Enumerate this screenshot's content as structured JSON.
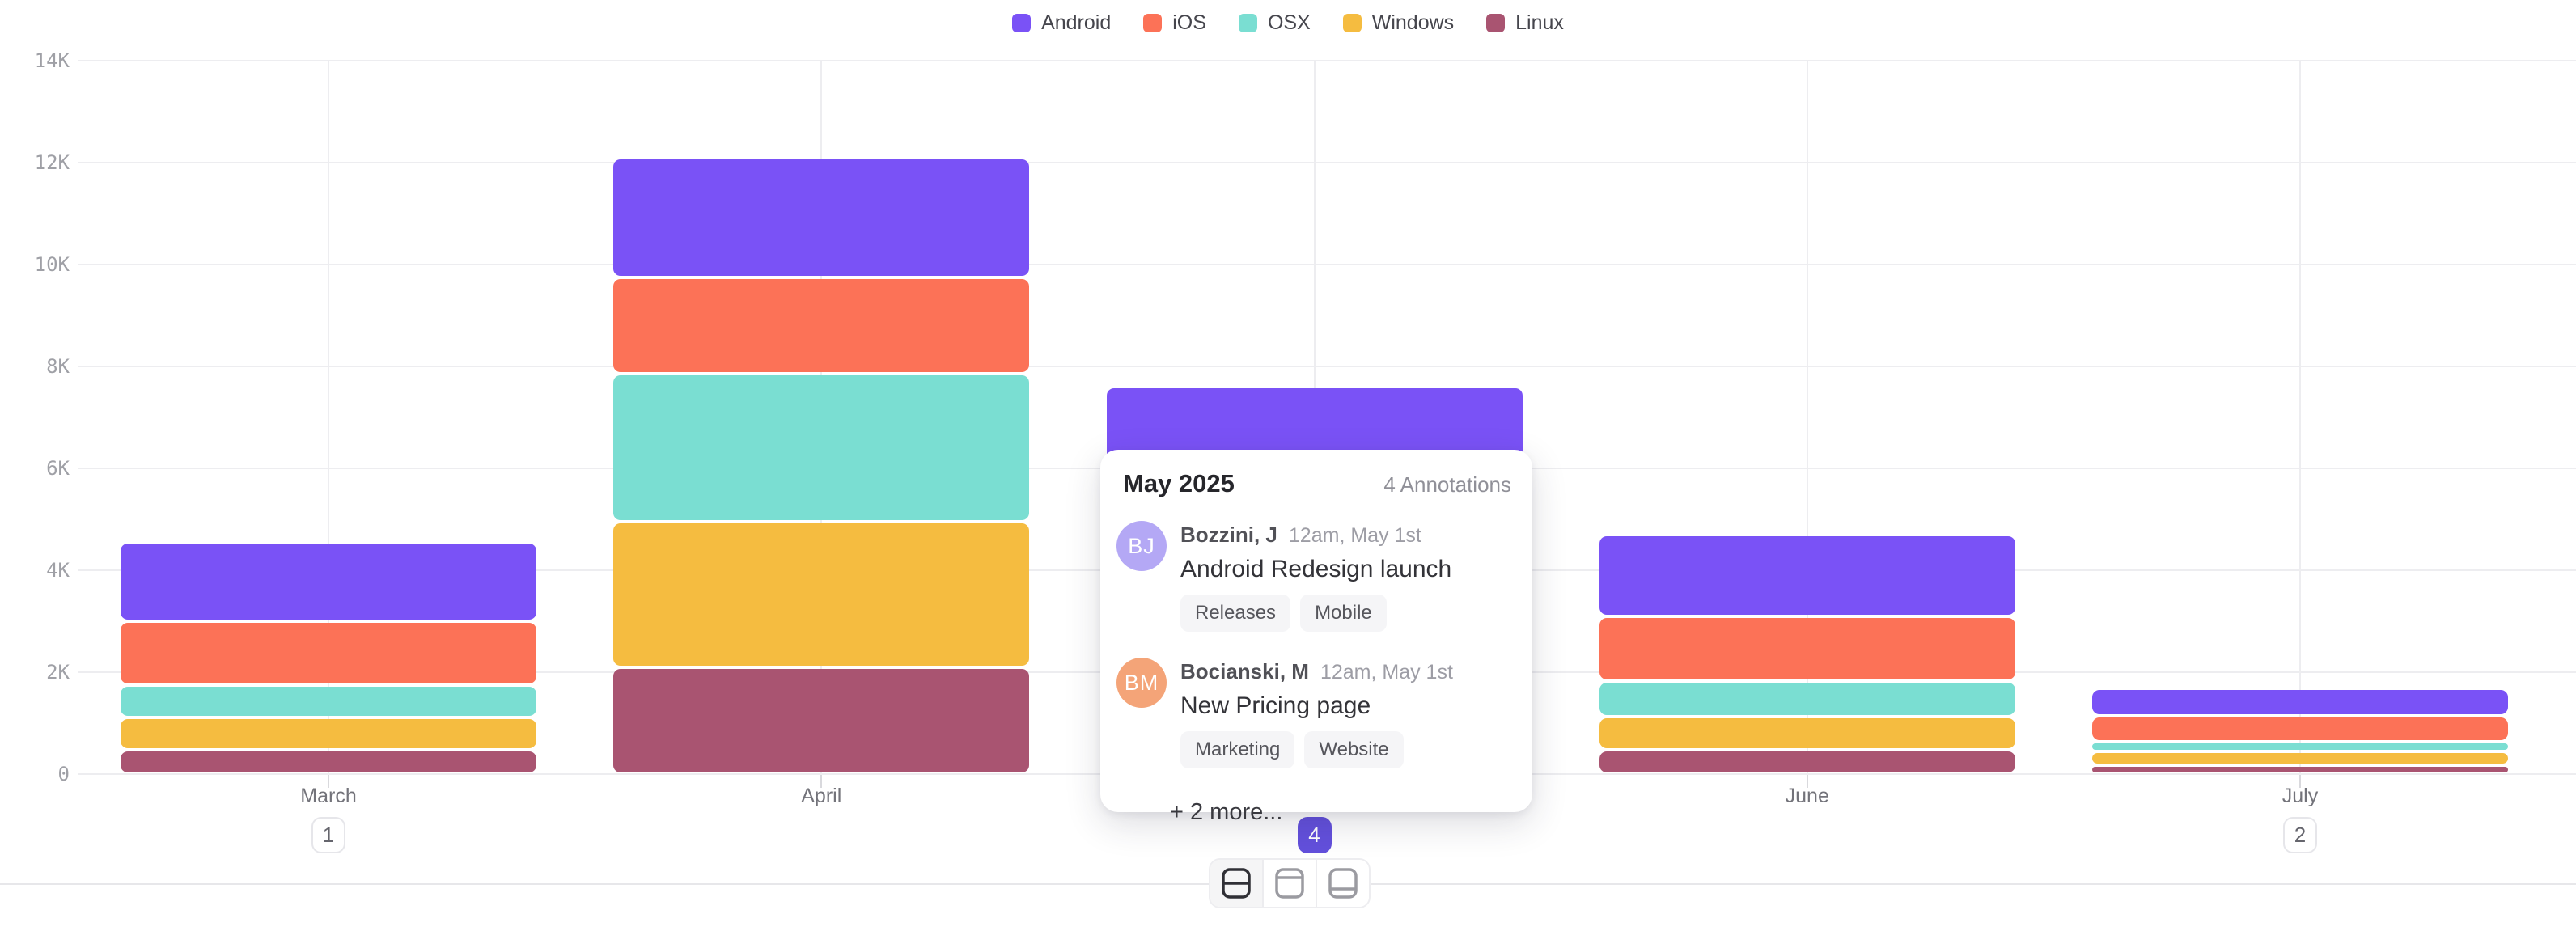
{
  "chart_data": {
    "type": "bar",
    "variant": "stacked",
    "title": "",
    "xlabel": "",
    "ylabel": "",
    "unit": "K",
    "categories": [
      "March",
      "April",
      "May",
      "June",
      "July"
    ],
    "series": [
      {
        "name": "Android",
        "color": "#7a52f6",
        "values": [
          1.56,
          2.35,
          2.1,
          1.6,
          0.54
        ]
      },
      {
        "name": "iOS",
        "color": "#fc7257",
        "values": [
          1.25,
          1.9,
          1.7,
          1.27,
          0.5
        ]
      },
      {
        "name": "OSX",
        "color": "#7aded2",
        "values": [
          0.64,
          2.9,
          1.5,
          0.7,
          0.2
        ]
      },
      {
        "name": "Windows",
        "color": "#f5bc40",
        "values": [
          0.63,
          2.85,
          1.3,
          0.65,
          0.26
        ]
      },
      {
        "name": "Linux",
        "color": "#a95471",
        "values": [
          0.48,
          2.1,
          1.0,
          0.48,
          0.18
        ]
      }
    ],
    "stack_order_bottom_to_top": [
      "Linux",
      "Windows",
      "OSX",
      "iOS",
      "Android"
    ],
    "ylim": [
      0,
      14
    ],
    "ytick_values": [
      0,
      2,
      4,
      6,
      8,
      10,
      12,
      14
    ],
    "ytick_labels": [
      "0",
      "2K",
      "4K",
      "6K",
      "8K",
      "10K",
      "12K",
      "14K"
    ],
    "grid": "on",
    "legend_position": "top-center",
    "annotation_counts": [
      1,
      null,
      4,
      null,
      2
    ],
    "selected_category": "May",
    "selected_index": 2
  },
  "tooltip": {
    "title": "May 2025",
    "count_label": "4 Annotations",
    "entries": [
      {
        "initials": "BJ",
        "avatar_color": "#b4a8f5",
        "name": "Bozzini, J",
        "time": "12am, May 1st",
        "title": "Android Redesign launch",
        "tags": [
          "Releases",
          "Mobile"
        ]
      },
      {
        "initials": "BM",
        "avatar_color": "#f4a478",
        "name": "Bocianski, M",
        "time": "12am, May 1st",
        "title": "New Pricing page",
        "tags": [
          "Marketing",
          "Website"
        ]
      }
    ],
    "more_label": "+ 2 more..."
  },
  "view_switcher": {
    "active_index": 0,
    "buttons": [
      {
        "icon": "layout-rows-split-icon"
      },
      {
        "icon": "layout-top-bar-icon"
      },
      {
        "icon": "layout-bottom-bar-icon"
      }
    ]
  },
  "colors": {
    "accent": "#6350dc",
    "active_icon": "#303036",
    "inactive_icon": "#9b9ba1"
  }
}
